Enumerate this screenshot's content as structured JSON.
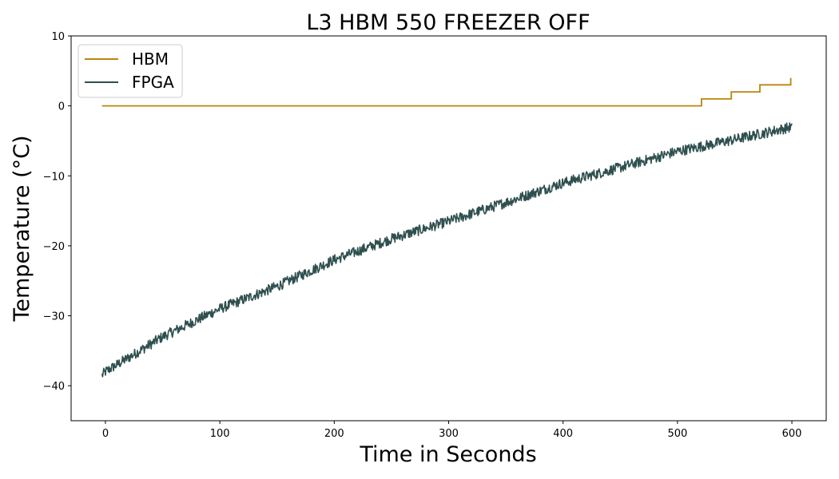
{
  "chart_data": {
    "type": "line",
    "title": "L3 HBM 550 FREEZER OFF",
    "xlabel": "Time in Seconds",
    "ylabel": "Temperature (°C)",
    "xlim": [
      -30,
      630
    ],
    "ylim": [
      -45,
      10
    ],
    "xticks": [
      0,
      100,
      200,
      300,
      400,
      500,
      600
    ],
    "xtick_labels": [
      "0",
      "100",
      "200",
      "300",
      "400",
      "500",
      "600"
    ],
    "yticks": [
      -40,
      -30,
      -20,
      -10,
      0,
      10
    ],
    "ytick_labels": [
      "−40",
      "−30",
      "−20",
      "−10",
      "0",
      "10"
    ],
    "grid": false,
    "legend": "upper-left",
    "series": [
      {
        "name": "HBM",
        "color": "#b8860b",
        "x": [
          -3,
          521,
          521,
          547,
          547,
          572,
          572,
          599,
          599
        ],
        "y": [
          0,
          0,
          1,
          1,
          2,
          2,
          3,
          3,
          4
        ]
      },
      {
        "name": "FPGA",
        "color": "#2f4f4f",
        "x": [
          -3,
          0,
          50,
          100,
          150,
          200,
          250,
          300,
          350,
          400,
          450,
          500,
          550,
          600
        ],
        "y": [
          -38.5,
          -38,
          -33,
          -29,
          -25.8,
          -22,
          -19,
          -16.5,
          -13.8,
          -11,
          -8.8,
          -6.5,
          -4.8,
          -3
        ]
      }
    ]
  }
}
